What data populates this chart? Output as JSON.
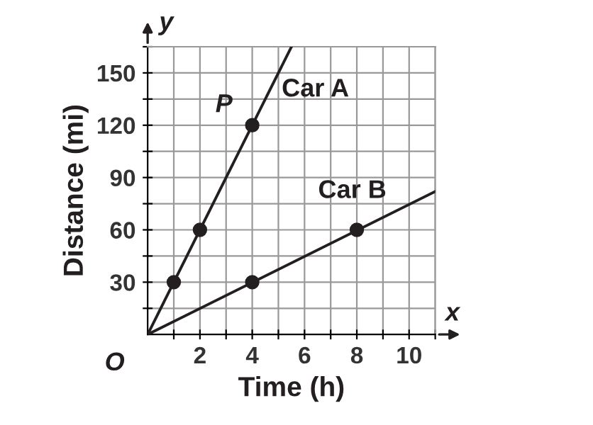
{
  "chart_data": {
    "type": "line",
    "xlabel": "Time (h)",
    "ylabel": "Distance (mi)",
    "series": [
      {
        "name": "Car A",
        "color": "#231f20",
        "x": [
          0,
          5.5
        ],
        "values": [
          0,
          165
        ]
      },
      {
        "name": "Car B",
        "color": "#231f20",
        "x": [
          0,
          11
        ],
        "values": [
          0,
          82
        ]
      },
      {
        "type": "scatter",
        "color": "#231f20",
        "marker": "circle",
        "x": [
          1,
          2,
          4
        ],
        "values": [
          30,
          60,
          120
        ]
      },
      {
        "type": "scatter",
        "color": "#231f20",
        "marker": "circle",
        "x": [
          4,
          8
        ],
        "values": [
          30,
          60
        ]
      }
    ],
    "xlim": [
      0,
      11
    ],
    "ylim": [
      0,
      165
    ],
    "xticks": [
      {
        "value": 1,
        "label": null
      },
      2,
      {
        "value": 3,
        "label": null
      },
      4,
      {
        "value": 5,
        "label": null
      },
      6,
      {
        "value": 7,
        "label": null
      },
      8,
      {
        "value": 9,
        "label": null
      },
      10,
      {
        "value": 11,
        "label": null
      }
    ],
    "yticks": [
      {
        "value": 15,
        "label": null
      },
      30,
      {
        "value": 45,
        "label": null
      },
      60,
      {
        "value": 75,
        "label": null
      },
      90,
      {
        "value": 105,
        "label": null
      },
      120,
      {
        "value": 135,
        "label": null
      },
      150,
      {
        "value": 165,
        "label": null
      }
    ],
    "grid": true,
    "legend": false,
    "annotations": [
      {
        "text": "P",
        "x": 4,
        "y": 120
      },
      "O",
      "x",
      "y"
    ]
  }
}
